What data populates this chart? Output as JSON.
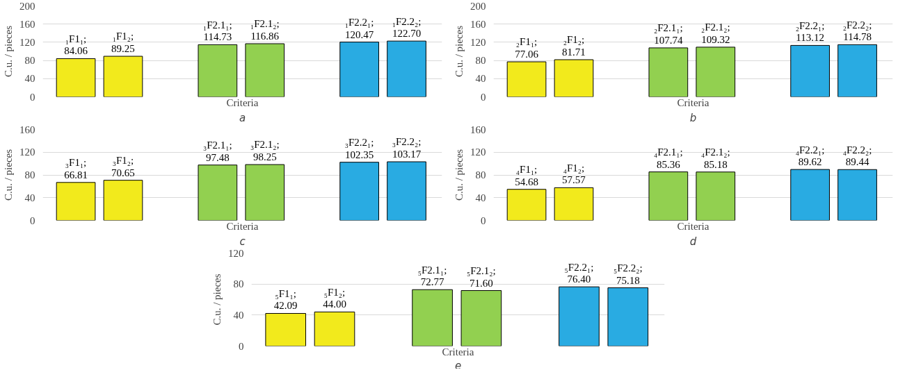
{
  "chart_data": [
    {
      "type": "bar",
      "categories": [
        null,
        null,
        null,
        null,
        null,
        null,
        null,
        null
      ],
      "values": [
        84.06,
        89.25,
        null,
        114.73,
        116.86,
        null,
        120.47,
        122.7
      ],
      "colors": [
        "#f2ea1c",
        "#f2ea1c",
        null,
        "#92d050",
        "#92d050",
        null,
        "#29abe2",
        "#29abe2"
      ],
      "value_labels": [
        "₁F1₁;\n84.06",
        "₁F1₂;\n89.25",
        null,
        "₁F2.1₁;\n114.73",
        "₁F2.1₂;\n116.86",
        null,
        "₁F2.2₁;\n120.47",
        "₁F2.2₂;\n122.70"
      ],
      "ylim": [
        0,
        200
      ],
      "yticks": [
        0,
        40,
        80,
        120,
        160,
        200
      ],
      "ylabel": "C.u. / pieces",
      "xlabel": "Criteria",
      "annotations": [
        "a"
      ],
      "grid": "y",
      "tick_labels": "y"
    },
    {
      "type": "bar",
      "categories": [
        null,
        null,
        null,
        null,
        null,
        null,
        null,
        null
      ],
      "values": [
        77.06,
        81.71,
        null,
        107.74,
        109.32,
        null,
        113.12,
        114.78
      ],
      "colors": [
        "#f2ea1c",
        "#f2ea1c",
        null,
        "#92d050",
        "#92d050",
        null,
        "#29abe2",
        "#29abe2"
      ],
      "value_labels": [
        "₂F1₁;\n77.06",
        "₂F1₂;\n81.71",
        null,
        "₂F2.1₁;\n107.74",
        "₂F2.1₂;\n109.32",
        null,
        "₂F2.2₁;\n113.12",
        "₂F2.2₂;\n114.78"
      ],
      "ylim": [
        0,
        200
      ],
      "yticks": [
        0,
        40,
        80,
        120,
        160,
        200
      ],
      "ylabel": "C.u. / pieces",
      "xlabel": "Criteria",
      "annotations": [
        "b"
      ],
      "grid": "y",
      "tick_labels": "y"
    },
    {
      "type": "bar",
      "categories": [
        null,
        null,
        null,
        null,
        null,
        null,
        null,
        null
      ],
      "values": [
        66.81,
        70.65,
        null,
        97.48,
        98.25,
        null,
        102.35,
        103.17
      ],
      "colors": [
        "#f2ea1c",
        "#f2ea1c",
        null,
        "#92d050",
        "#92d050",
        null,
        "#29abe2",
        "#29abe2"
      ],
      "value_labels": [
        "₃F1₁;\n66.81",
        "₃F1₂;\n70.65",
        null,
        "₃F2.1₁;\n97.48",
        "₃F2.1₂;\n98.25",
        null,
        "₃F2.2₁;\n102.35",
        "₃F2.2₂;\n103.17"
      ],
      "ylim": [
        0,
        160
      ],
      "yticks": [
        0,
        40,
        80,
        120,
        160
      ],
      "ylabel": "C.u. / pieces",
      "xlabel": "Criteria",
      "annotations": [
        "c"
      ],
      "grid": "y",
      "tick_labels": "y"
    },
    {
      "type": "bar",
      "categories": [
        null,
        null,
        null,
        null,
        null,
        null,
        null,
        null
      ],
      "values": [
        54.68,
        57.57,
        null,
        85.36,
        85.18,
        null,
        89.62,
        89.44
      ],
      "colors": [
        "#f2ea1c",
        "#f2ea1c",
        null,
        "#92d050",
        "#92d050",
        null,
        "#29abe2",
        "#29abe2"
      ],
      "value_labels": [
        "₄F1₁;\n54.68",
        "₄F1₂;\n57.57",
        null,
        "₄F2.1₁;\n85.36",
        "₄F2.1₂;\n85.18",
        null,
        "₄F2.2₁;\n89.62",
        "₄F2.2₂;\n89.44"
      ],
      "ylim": [
        0,
        160
      ],
      "yticks": [
        0,
        40,
        80,
        120,
        160
      ],
      "ylabel": "C.u. / pieces",
      "xlabel": "Criteria",
      "annotations": [
        "d"
      ],
      "grid": "y",
      "tick_labels": "y"
    },
    {
      "type": "bar",
      "categories": [
        null,
        null,
        null,
        null,
        null,
        null,
        null,
        null
      ],
      "values": [
        42.09,
        44.0,
        null,
        72.77,
        71.6,
        null,
        76.4,
        75.18
      ],
      "colors": [
        "#f2ea1c",
        "#f2ea1c",
        null,
        "#92d050",
        "#92d050",
        null,
        "#29abe2",
        "#29abe2"
      ],
      "value_labels": [
        "₅F1₁;\n42.09",
        "₅F1₂;\n44.00",
        null,
        "₅F2.1₁;\n72.77",
        "₅F2.1₂;\n71.60",
        null,
        "₅F2.2₁;\n76.40",
        "₅F2.2₂;\n75.18"
      ],
      "ylim": [
        0,
        120
      ],
      "yticks": [
        0,
        40,
        80,
        120
      ],
      "ylabel": "C.u. / pieces",
      "xlabel": "Criteria",
      "annotations": [
        "e"
      ],
      "grid": "y",
      "tick_labels": "y"
    }
  ]
}
